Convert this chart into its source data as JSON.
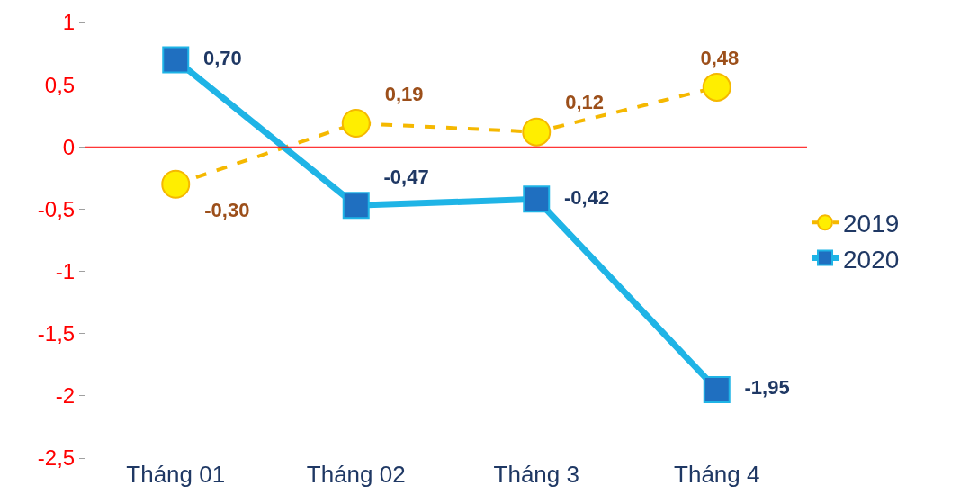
{
  "chart_data": {
    "type": "line",
    "categories": [
      "Tháng 01",
      "Tháng 02",
      "Tháng 3",
      "Tháng 4"
    ],
    "series": [
      {
        "name": "2019",
        "color": "#f5b800",
        "values": [
          -0.3,
          0.19,
          0.12,
          0.48
        ],
        "value_labels": [
          "-0,30",
          "0,19",
          "0,12",
          "0,48"
        ],
        "marker": "circle",
        "line_style": "dashed"
      },
      {
        "name": "2020",
        "color": "#1fb4e6",
        "values": [
          0.7,
          -0.47,
          -0.42,
          -1.95
        ],
        "value_labels": [
          "0,70",
          "-0,47",
          "-0,42",
          "-1,95"
        ],
        "marker": "square",
        "line_style": "solid"
      }
    ],
    "ylim": [
      -2.5,
      1
    ],
    "yticks": [
      {
        "value": 1,
        "label": "1"
      },
      {
        "value": 0.5,
        "label": "0,5"
      },
      {
        "value": 0,
        "label": "0"
      },
      {
        "value": -0.5,
        "label": "-0,5"
      },
      {
        "value": -1,
        "label": "-1"
      },
      {
        "value": -1.5,
        "label": "-1,5"
      },
      {
        "value": -2,
        "label": "-2"
      },
      {
        "value": -2.5,
        "label": "-2,5"
      }
    ],
    "ref_lines": [
      {
        "axis": "y",
        "value": 0,
        "color": "#ff0000"
      }
    ],
    "legend": "right"
  }
}
